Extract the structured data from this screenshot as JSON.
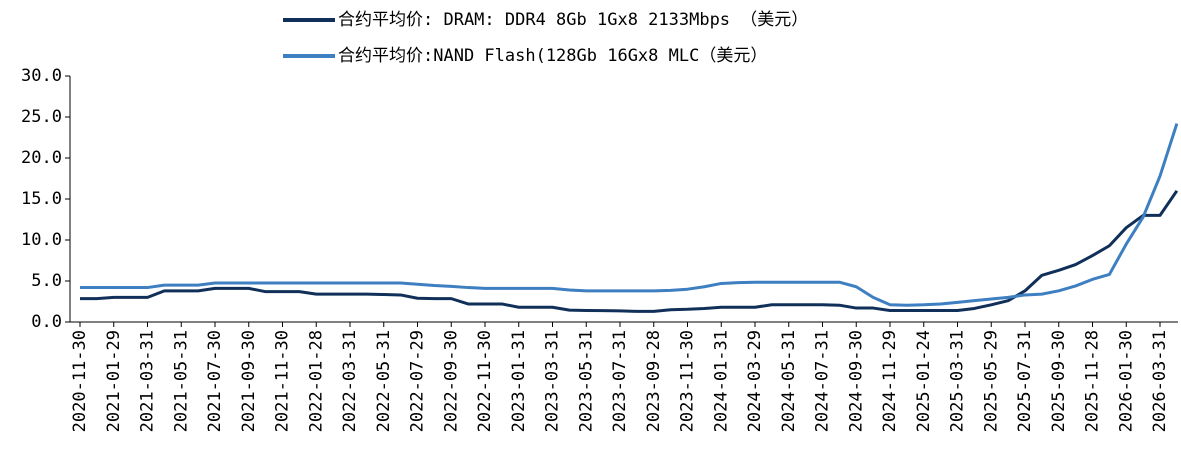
{
  "chart_data": {
    "type": "line",
    "categories": [
      "2020-11-30",
      null,
      "2021-01-29",
      null,
      "2021-03-31",
      null,
      "2021-05-31",
      null,
      "2021-07-30",
      null,
      "2021-09-30",
      null,
      "2021-11-30",
      null,
      "2022-01-28",
      null,
      "2022-03-31",
      null,
      "2022-05-31",
      null,
      "2022-07-29",
      null,
      "2022-09-30",
      null,
      "2022-11-30",
      null,
      "2023-01-31",
      null,
      "2023-03-31",
      null,
      "2023-05-31",
      null,
      "2023-07-31",
      null,
      "2023-09-28",
      null,
      "2023-11-30",
      null,
      "2024-01-31",
      null,
      "2024-03-29",
      null,
      "2024-05-31",
      null,
      "2024-07-31",
      null,
      "2024-09-30",
      null,
      "2024-11-29",
      null,
      "2025-01-24",
      null,
      "2025-03-31",
      null,
      "2025-05-29",
      null,
      "2025-07-31",
      null,
      "2025-09-30",
      null,
      "2025-11-28",
      null,
      "2026-01-30",
      null,
      "2026-03-31",
      null
    ],
    "series": [
      {
        "name": "合约平均价: DRAM: DDR4 8Gb 1Gx8 2133Mbps （美元）",
        "color": "#10305a",
        "values": [
          2.85,
          2.85,
          3.0,
          3.0,
          3.0,
          3.8,
          3.8,
          3.8,
          4.1,
          4.1,
          4.1,
          3.7,
          3.7,
          3.7,
          3.4,
          3.4,
          3.4,
          3.4,
          3.35,
          3.3,
          2.9,
          2.85,
          2.85,
          2.2,
          2.2,
          2.2,
          1.8,
          1.8,
          1.8,
          1.45,
          1.4,
          1.38,
          1.35,
          1.3,
          1.3,
          1.5,
          1.55,
          1.65,
          1.8,
          1.8,
          1.8,
          2.1,
          2.1,
          2.1,
          2.1,
          2.05,
          1.7,
          1.7,
          1.4,
          1.4,
          1.4,
          1.4,
          1.4,
          1.65,
          2.1,
          2.6,
          3.8,
          5.7,
          6.3,
          7.0,
          8.1,
          9.3,
          11.5,
          13.0,
          13.0,
          16.0
        ]
      },
      {
        "name": "合约平均价:NAND Flash(128Gb 16Gx8 MLC（美元）",
        "color": "#3d7fc1",
        "values": [
          4.2,
          4.2,
          4.2,
          4.2,
          4.2,
          4.5,
          4.5,
          4.5,
          4.75,
          4.75,
          4.75,
          4.75,
          4.75,
          4.75,
          4.75,
          4.75,
          4.75,
          4.75,
          4.75,
          4.75,
          4.6,
          4.45,
          4.35,
          4.2,
          4.1,
          4.1,
          4.1,
          4.1,
          4.1,
          3.9,
          3.8,
          3.8,
          3.8,
          3.8,
          3.8,
          3.85,
          4.0,
          4.3,
          4.7,
          4.8,
          4.85,
          4.85,
          4.85,
          4.85,
          4.85,
          4.85,
          4.3,
          3.0,
          2.1,
          2.05,
          2.1,
          2.2,
          2.4,
          2.6,
          2.8,
          3.0,
          3.3,
          3.4,
          3.8,
          4.4,
          5.2,
          5.8,
          9.5,
          12.8,
          17.8,
          24.2
        ]
      }
    ],
    "ylim": [
      0,
      30
    ],
    "yticks": [
      {
        "value": 0,
        "label": "0.0"
      },
      {
        "value": 5,
        "label": "5.0"
      },
      {
        "value": 10,
        "label": "10.0"
      },
      {
        "value": 15,
        "label": "15.0"
      },
      {
        "value": 20,
        "label": "20.0"
      },
      {
        "value": 25,
        "label": "25.0"
      },
      {
        "value": 30,
        "label": "30.0"
      }
    ],
    "legend": "top"
  }
}
